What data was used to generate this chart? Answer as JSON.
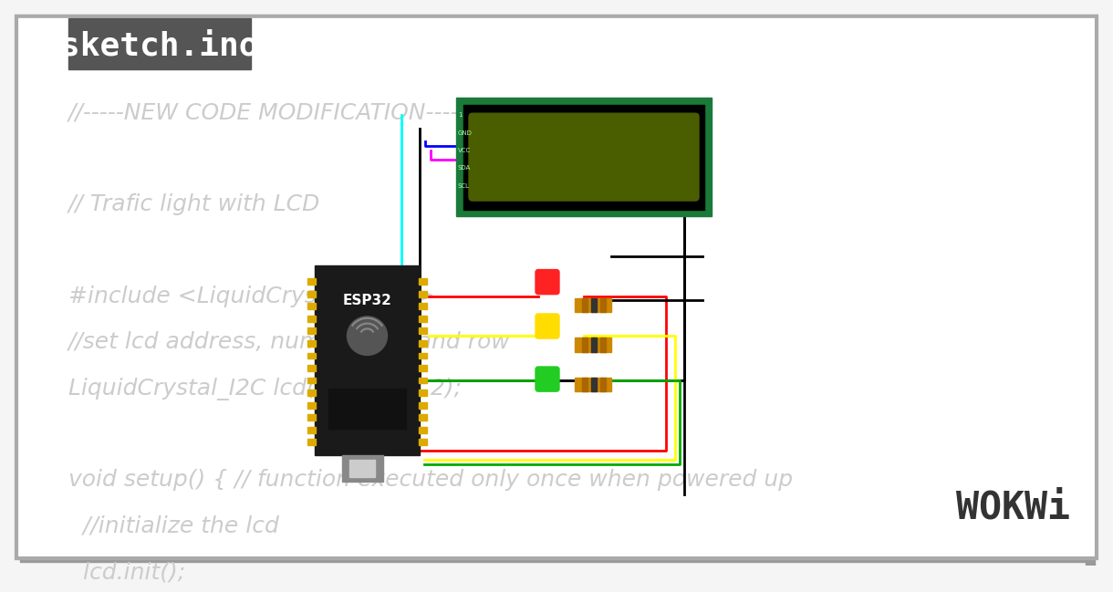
{
  "bg_color": "#f5f5f5",
  "outer_border_color": "#cccccc",
  "inner_bg": "#ffffff",
  "title_bg": "#555555",
  "title_text": "sketch.ino",
  "title_color": "#ffffff",
  "code_lines": [
    "//-----NEW CODE MODIFICATION-----",
    "",
    "// Trafic light with LCD",
    "",
    "#include <LiquidCrystal_I2C.h>",
    "//set lcd address, num colums and row",
    "LiquidCrystal_I2C lcd(0x27, 16, 2);",
    "",
    "void setup() { // function executed only once when powered up",
    "  //initialize the lcd",
    "  lcd.init();"
  ],
  "code_color": "#cccccc",
  "code_fontsize": 14,
  "wokwi_text": "WOKWi",
  "wokwi_color": "#333333",
  "lcd_outer_color": "#1a7a3a",
  "lcd_inner_color": "#000000",
  "lcd_screen_color": "#4a5e00",
  "esp32_body_color": "#1a1a1a",
  "esp32_label_color": "#ffffff",
  "wire_cyan": "#00ffff",
  "wire_black": "#000000",
  "wire_blue": "#0000ff",
  "wire_magenta": "#ff00ff",
  "wire_red": "#ff0000",
  "wire_yellow": "#ffff00",
  "wire_green": "#00aa00",
  "led_red_color": "#ff2222",
  "led_yellow_color": "#ffdd00",
  "led_green_color": "#22cc22",
  "resistor_color": "#cc8800"
}
